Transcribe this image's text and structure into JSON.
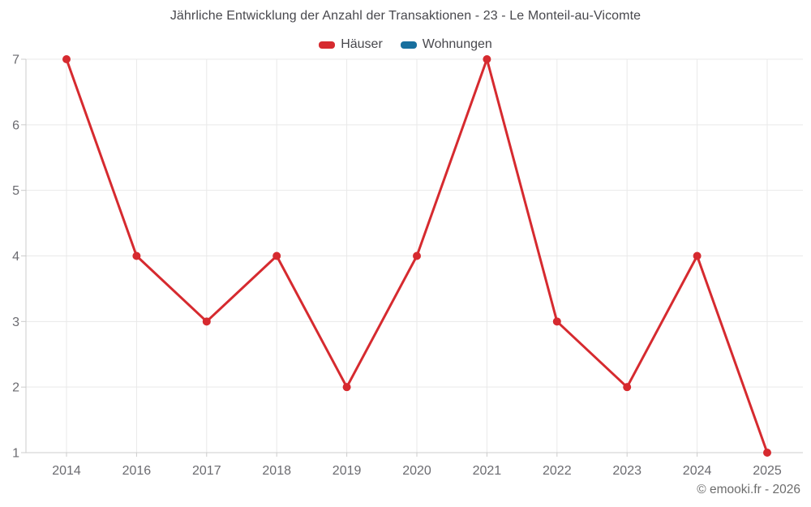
{
  "chart_data": {
    "type": "line",
    "title": "Jährliche Entwicklung der Anzahl der Transaktionen - 23 - Le Monteil-au-Vicomte",
    "categories": [
      "2014",
      "2016",
      "2017",
      "2018",
      "2019",
      "2020",
      "2021",
      "2022",
      "2023",
      "2024",
      "2025"
    ],
    "series": [
      {
        "name": "Häuser",
        "color": "#d62a2f",
        "values": [
          7,
          4,
          3,
          4,
          2,
          4,
          7,
          3,
          2,
          4,
          1
        ]
      },
      {
        "name": "Wohnungen",
        "color": "#186f9e",
        "values": []
      }
    ],
    "xlabel": "",
    "ylabel": "",
    "ylim": [
      1,
      7
    ],
    "yticks": [
      1,
      2,
      3,
      4,
      5,
      6,
      7
    ],
    "grid": true,
    "legend_position": "top"
  },
  "footer": {
    "credit": "© emooki.fr - 2026"
  },
  "colors": {
    "grid": "#e9e9e9",
    "axis": "#cccccc",
    "title_text": "#48484d",
    "axis_text": "#6b6b70",
    "footer_text": "#6d6d6d",
    "background": "#ffffff"
  }
}
